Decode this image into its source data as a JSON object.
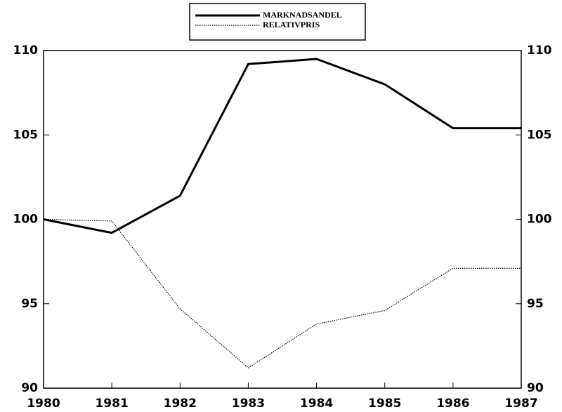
{
  "chart_data": {
    "type": "line",
    "x": [
      1980,
      1981,
      1982,
      1983,
      1984,
      1985,
      1986,
      1987
    ],
    "series": [
      {
        "name": "MARKNADSANDEL",
        "color": "#000000",
        "values": [
          100,
          99.2,
          101.4,
          109.2,
          109.5,
          108.0,
          105.4,
          105.4
        ]
      },
      {
        "name": "RELATIVPRIS",
        "color": "#000000",
        "values": [
          100,
          99.9,
          94.7,
          91.2,
          93.8,
          94.6,
          97.1,
          97.1
        ]
      }
    ],
    "xlim": [
      1980,
      1987
    ],
    "xticks": [
      1980,
      1981,
      1982,
      1983,
      1984,
      1985,
      1986,
      1987
    ],
    "ylim": [
      90,
      110
    ],
    "yticks": [
      90,
      95,
      100,
      105,
      110
    ],
    "y2lim": [
      90,
      110
    ],
    "y2ticks": [
      90,
      95,
      100,
      105,
      110
    ],
    "grid": false,
    "legend": "top"
  }
}
